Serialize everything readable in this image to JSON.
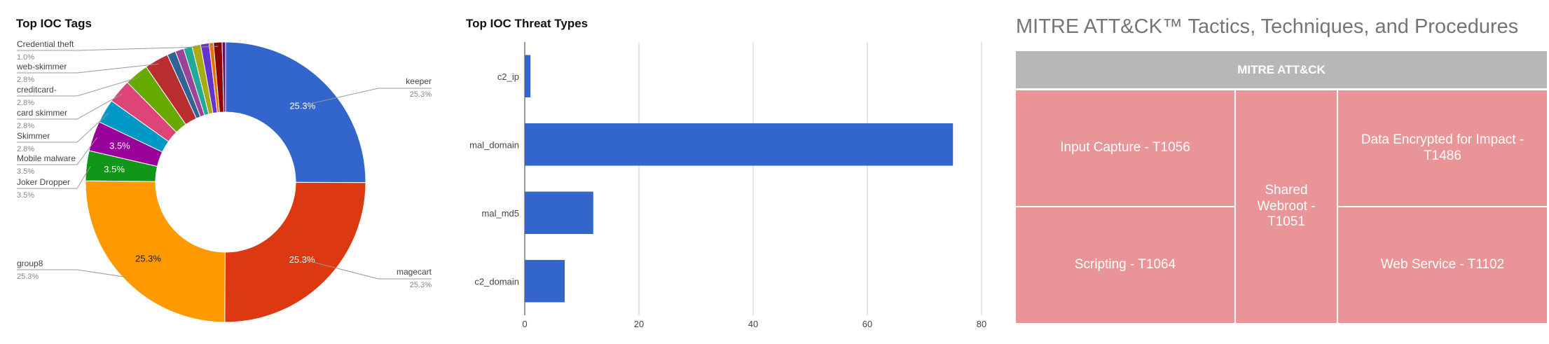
{
  "chart_data": [
    {
      "type": "pie",
      "title": "Top IOC Tags",
      "donut": true,
      "slices": [
        {
          "label": "keeper",
          "value": 25.3,
          "pct_label": "25.3%",
          "color": "#3366cc",
          "legend": "right"
        },
        {
          "label": "magecart",
          "value": 25.3,
          "pct_label": "25.3%",
          "color": "#dc3912",
          "legend": "right"
        },
        {
          "label": "group8",
          "value": 25.3,
          "pct_label": "25.3%",
          "color": "#ff9900",
          "legend": "left"
        },
        {
          "label": "Joker Dropper",
          "value": 3.5,
          "pct_label": "3.5%",
          "color": "#109618",
          "legend": "left"
        },
        {
          "label": "Mobile malware",
          "value": 3.5,
          "pct_label": "3.5%",
          "color": "#990099",
          "legend": "left"
        },
        {
          "label": "Skimmer",
          "value": 2.8,
          "pct_label": "2.8%",
          "color": "#0099c6",
          "legend": "left"
        },
        {
          "label": "card skimmer",
          "value": 2.8,
          "pct_label": "2.8%",
          "color": "#dd4477",
          "legend": "left"
        },
        {
          "label": "creditcard-",
          "value": 2.8,
          "pct_label": "2.8%",
          "color": "#66aa00",
          "legend": "left"
        },
        {
          "label": "web-skimmer",
          "value": 2.8,
          "pct_label": "2.8%",
          "color": "#b82e2e",
          "legend": "left"
        },
        {
          "label": "",
          "value": 1.0,
          "pct_label": "",
          "color": "#316395",
          "legend": "none"
        },
        {
          "label": "",
          "value": 1.0,
          "pct_label": "",
          "color": "#994499",
          "legend": "none"
        },
        {
          "label": "",
          "value": 1.0,
          "pct_label": "",
          "color": "#22aa99",
          "legend": "none"
        },
        {
          "label": "",
          "value": 1.0,
          "pct_label": "",
          "color": "#aaaa11",
          "legend": "none"
        },
        {
          "label": "",
          "value": 1.0,
          "pct_label": "",
          "color": "#6633cc",
          "legend": "none"
        },
        {
          "label": "",
          "value": 0.5,
          "pct_label": "",
          "color": "#e67300",
          "legend": "none"
        },
        {
          "label": "Credential theft",
          "value": 1.0,
          "pct_label": "1.0%",
          "color": "#8b0707",
          "legend": "left"
        },
        {
          "label": "",
          "value": 0.4,
          "pct_label": "",
          "color": "#651067",
          "legend": "none"
        }
      ],
      "inner_labels": [
        "25.3%",
        "25.3%",
        "25.3%",
        "3.5%",
        "3.5%"
      ]
    },
    {
      "type": "bar",
      "orientation": "horizontal",
      "title": "Top IOC Threat Types",
      "categories": [
        "c2_ip",
        "mal_domain",
        "mal_md5",
        "c2_domain"
      ],
      "values": [
        1,
        75,
        12,
        7
      ],
      "xlim": [
        0,
        80
      ],
      "xticks": [
        "0",
        "20",
        "40",
        "60",
        "80"
      ],
      "color": "#3366cc",
      "grid": true
    }
  ],
  "mitre": {
    "title": "MITRE ATT&CK™ Tactics, Techniques, and Procedures",
    "header": "MITRE ATT&CK",
    "cells": {
      "input_capture": "Input Capture - T1056",
      "scripting": "Scripting - T1064",
      "shared_webroot": "Shared Webroot - T1051",
      "data_encrypted": "Data Encrypted for Impact - T1486",
      "web_service": "Web Service - T1102"
    },
    "cell_color": "#e99597",
    "header_color": "#b7b7b7"
  }
}
